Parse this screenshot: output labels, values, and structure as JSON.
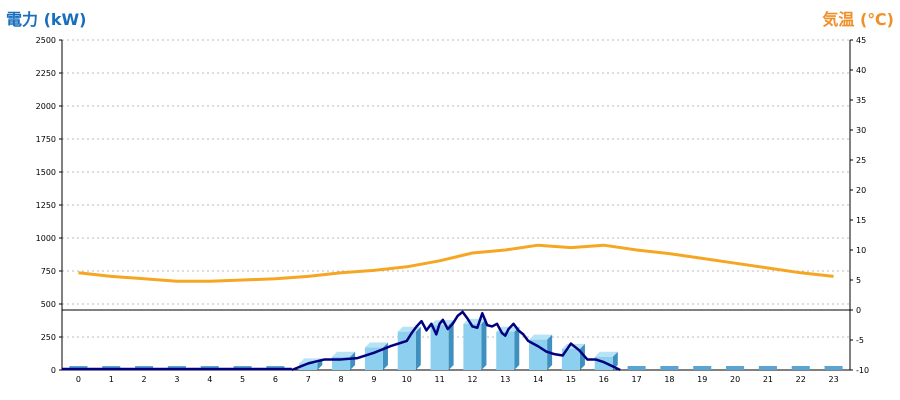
{
  "chart_data": {
    "type": "bar",
    "left_axis_title": "電力 (kW)",
    "right_axis_title": "気温 (℃)",
    "categories": [
      "0",
      "1",
      "2",
      "3",
      "4",
      "5",
      "6",
      "7",
      "8",
      "9",
      "10",
      "11",
      "12",
      "13",
      "14",
      "15",
      "16",
      "17",
      "18",
      "19",
      "20",
      "21",
      "22",
      "23"
    ],
    "left_axis": {
      "ticks": [
        0,
        250,
        500,
        750,
        1000,
        1250,
        1500,
        1750,
        2000,
        2250,
        2500
      ],
      "ylim": [
        0,
        2500
      ]
    },
    "right_axis": {
      "ticks": [
        -10,
        -5,
        0,
        5,
        10,
        15,
        20,
        25,
        30,
        35,
        40,
        45
      ],
      "ylim": [
        -10,
        45
      ]
    },
    "colors": {
      "bar": "#8ccfee",
      "bar_side": "#3f8fbf",
      "bar_zero": "#5ba3d0",
      "temperature": "#f5a623",
      "power_line": "#000080",
      "title_left": "#1a6fbd",
      "title_right": "#f0902a"
    },
    "series": [
      {
        "name": "電力 (kW)",
        "type": "bar",
        "axis": "left",
        "values": [
          0,
          0,
          0,
          0,
          0,
          0,
          0,
          50,
          100,
          170,
          290,
          340,
          350,
          290,
          230,
          160,
          100,
          0,
          0,
          0,
          0,
          0,
          0,
          0
        ]
      },
      {
        "name": "気温 (℃)",
        "type": "line",
        "axis": "right",
        "values": [
          6.2,
          5.6,
          5.2,
          4.8,
          4.8,
          5.0,
          5.2,
          5.6,
          6.2,
          6.6,
          7.2,
          8.2,
          9.5,
          10.0,
          10.8,
          10.4,
          10.8,
          10.0,
          9.4,
          8.6,
          7.8,
          7.0,
          6.2,
          5.6
        ]
      },
      {
        "name": "電力 (kW)",
        "type": "line",
        "axis": "left",
        "x": [
          6.5,
          7,
          7.5,
          8,
          8.5,
          9,
          9.5,
          10,
          10.15,
          10.3,
          10.45,
          10.6,
          10.75,
          10.9,
          11,
          11.1,
          11.25,
          11.4,
          11.55,
          11.7,
          11.85,
          12,
          12.15,
          12.3,
          12.45,
          12.6,
          12.75,
          12.9,
          13,
          13.1,
          13.25,
          13.4,
          13.55,
          13.7,
          13.85,
          14,
          14.25,
          14.5,
          14.75,
          15,
          15.25,
          15.5,
          15.75,
          16,
          16.25,
          16.5
        ],
        "y": [
          0,
          50,
          80,
          80,
          90,
          130,
          180,
          220,
          280,
          330,
          370,
          300,
          350,
          270,
          350,
          380,
          310,
          350,
          410,
          440,
          390,
          330,
          320,
          430,
          340,
          330,
          350,
          280,
          260,
          310,
          350,
          300,
          270,
          220,
          200,
          180,
          140,
          120,
          110,
          200,
          150,
          80,
          80,
          60,
          30,
          0
        ]
      }
    ]
  }
}
